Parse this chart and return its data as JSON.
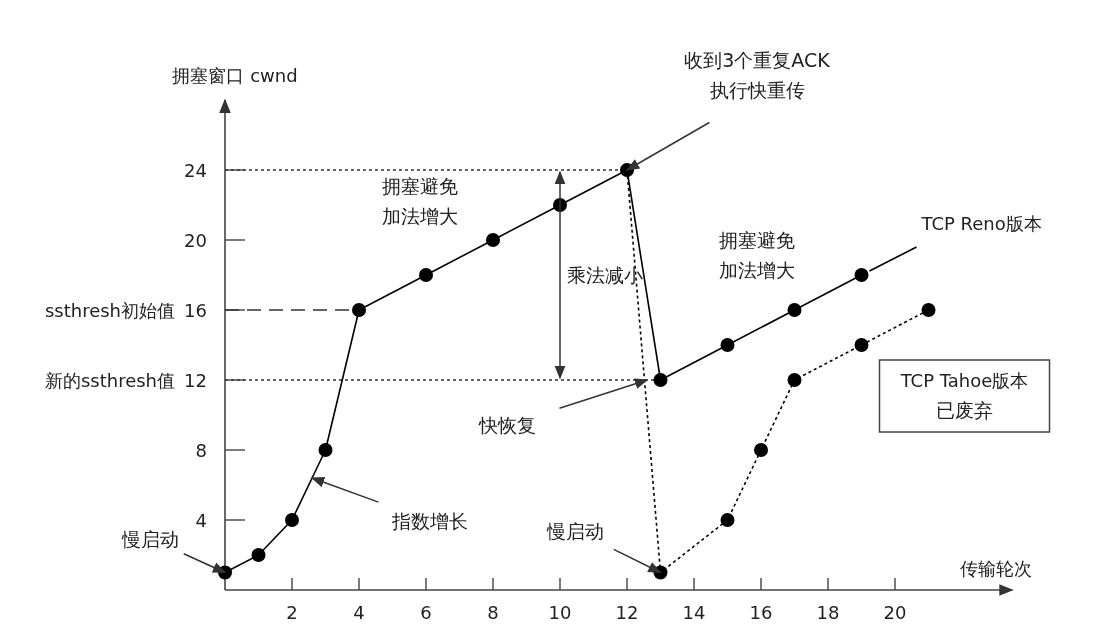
{
  "chart_data": {
    "type": "line",
    "xlabel": "传输轮次",
    "ylabel": "拥塞窗口 cwnd",
    "xlim": [
      0,
      23.5
    ],
    "ylim": [
      0,
      28
    ],
    "xticks": [
      2,
      4,
      6,
      8,
      10,
      12,
      14,
      16,
      18,
      20
    ],
    "yticks": [
      4,
      8,
      12,
      16,
      20,
      24
    ],
    "grid": false,
    "marker": "circle",
    "series": [
      {
        "color": "#000000",
        "line_style": "solid",
        "x": [
          0,
          1,
          2,
          3,
          4,
          6,
          8,
          10,
          12
        ],
        "values": [
          1,
          2,
          4,
          8,
          16,
          18,
          20,
          22,
          24
        ]
      },
      {
        "name": "TCP Reno版本",
        "color": "#000000",
        "line_style": "solid",
        "x": [
          12,
          13,
          15,
          17,
          19
        ],
        "values": [
          24,
          12,
          14,
          16,
          18
        ]
      },
      {
        "name": "TCP Tahoe版本",
        "color": "#000000",
        "line_style": "dotted",
        "x": [
          12,
          13,
          15,
          16,
          17,
          19,
          21
        ],
        "values": [
          24,
          1,
          4,
          8,
          12,
          14,
          16
        ]
      }
    ],
    "ref_lines": [
      {
        "axis": "y",
        "value": 24,
        "line_style": "dotted"
      },
      {
        "axis": "y",
        "value": 16,
        "label": "ssthresh初始值",
        "line_style": "dashed"
      },
      {
        "axis": "y",
        "value": 12,
        "label": "新的ssthresh值",
        "line_style": "dotted"
      }
    ],
    "annotations": [
      {
        "text": "慢启动",
        "x": 0,
        "y": 1
      },
      {
        "text": "指数增长",
        "x": 2.6,
        "y": 6.4
      },
      {
        "text": "收到3个重复ACK\n执行快重传",
        "x": 12,
        "y": 24
      },
      {
        "text": "快恢复",
        "x": 12.6,
        "y": 12
      },
      {
        "text": "慢启动",
        "x": 13,
        "y": 1
      },
      "乘法减小",
      "拥塞避免",
      "加法增大",
      "拥塞避免",
      "加法增大",
      "已废弃"
    ]
  }
}
